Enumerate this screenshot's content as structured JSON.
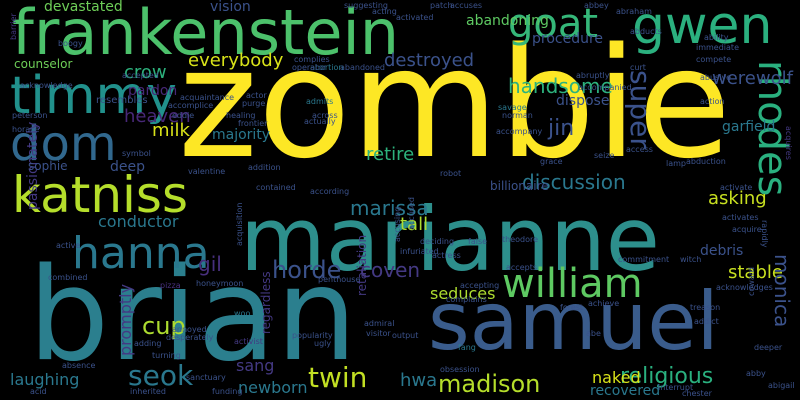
{
  "words": [
    {
      "text": "zombie",
      "color": "#fde725"
    },
    {
      "text": "marianne",
      "color": "#2d8f8c"
    },
    {
      "text": "brian",
      "color": "#2b7f8e"
    },
    {
      "text": "samuel",
      "color": "#3a5c8c"
    },
    {
      "text": "frankenstein",
      "color": "#4cc16b"
    },
    {
      "text": "gwen",
      "color": "#2bb07f"
    },
    {
      "text": "goat",
      "color": "#35b779"
    },
    {
      "text": "timmy",
      "color": "#21918c"
    },
    {
      "text": "dom",
      "color": "#31688e"
    },
    {
      "text": "katniss",
      "color": "#b5de2b"
    },
    {
      "text": "hanna",
      "color": "#2a788e"
    },
    {
      "text": "william",
      "color": "#5ec962"
    },
    {
      "text": "rhodes",
      "color": "#2ab07f"
    },
    {
      "text": "madison",
      "color": "#b5de2b"
    },
    {
      "text": "twin",
      "color": "#c2df23"
    },
    {
      "text": "horde",
      "color": "#3b528b"
    },
    {
      "text": "coven",
      "color": "#443983"
    },
    {
      "text": "seok",
      "color": "#2a788e"
    },
    {
      "text": "religious",
      "color": "#2ab07f"
    },
    {
      "text": "discussion",
      "color": "#2a788e"
    },
    {
      "text": "handsome",
      "color": "#2db27d"
    },
    {
      "text": "super",
      "color": "#3b528b"
    },
    {
      "text": "jin",
      "color": "#3b528b"
    },
    {
      "text": "marissa",
      "color": "#2a788e"
    },
    {
      "text": "retire",
      "color": "#2db27d"
    },
    {
      "text": "tall",
      "color": "#addc30"
    },
    {
      "text": "seduces",
      "color": "#addc30"
    },
    {
      "text": "cup",
      "color": "#addc30"
    },
    {
      "text": "gil",
      "color": "#472f7d"
    },
    {
      "text": "conductor",
      "color": "#2a788e"
    },
    {
      "text": "asking",
      "color": "#c8e020"
    },
    {
      "text": "stable",
      "color": "#c8e020"
    },
    {
      "text": "monica",
      "color": "#3b528b"
    },
    {
      "text": "werewolf",
      "color": "#3b528b"
    },
    {
      "text": "garfield",
      "color": "#2a788e"
    },
    {
      "text": "crow",
      "color": "#2db27d"
    },
    {
      "text": "heaven",
      "color": "#482878"
    },
    {
      "text": "milk",
      "color": "#d8e219"
    },
    {
      "text": "everybody",
      "color": "#d8e219"
    },
    {
      "text": "destroyed",
      "color": "#3b528b"
    },
    {
      "text": "procedure",
      "color": "#3b528b"
    },
    {
      "text": "devastated",
      "color": "#6ece58"
    },
    {
      "text": "vision",
      "color": "#3b528b"
    },
    {
      "text": "hwa",
      "color": "#2a788e"
    },
    {
      "text": "naked",
      "color": "#d8e219"
    },
    {
      "text": "recovered",
      "color": "#2a788e"
    },
    {
      "text": "newborn",
      "color": "#2a788e"
    },
    {
      "text": "laughing",
      "color": "#2a788e"
    },
    {
      "text": "sang",
      "color": "#443983"
    },
    {
      "text": "passionately",
      "color": "#443983"
    },
    {
      "text": "promptly",
      "color": "#443983"
    },
    {
      "text": "pardon",
      "color": "#482878"
    },
    {
      "text": "majority",
      "color": "#2a788e"
    },
    {
      "text": "sophie",
      "color": "#3b528b"
    },
    {
      "text": "deep",
      "color": "#3b528b"
    },
    {
      "text": "dispose",
      "color": "#3b528b"
    },
    {
      "text": "billionaire",
      "color": "#3b528b"
    },
    {
      "text": "debris",
      "color": "#3b528b"
    },
    {
      "text": "retaliation",
      "color": "#443983"
    },
    {
      "text": "regardless",
      "color": "#443983"
    },
    {
      "text": "abandoning",
      "color": "#5ec962"
    },
    {
      "text": "counselor",
      "color": "#6ece58"
    },
    {
      "text": "resembles",
      "color": "#3b528b"
    },
    {
      "text": "popularity",
      "color": "#3b528b"
    },
    {
      "text": "output",
      "color": "#3b528b"
    },
    {
      "text": "pizza",
      "color": "#472f7d"
    },
    {
      "text": "woo",
      "color": "#2a788e"
    },
    {
      "text": "turning",
      "color": "#3b528b"
    },
    {
      "text": "absence",
      "color": "#3b528b"
    },
    {
      "text": "activist",
      "color": "#443983"
    },
    {
      "text": "ugly",
      "color": "#3b528b"
    },
    {
      "text": "fang",
      "color": "#2a788e"
    },
    {
      "text": "acquisition",
      "color": "#3b528b"
    },
    {
      "text": "abruptly",
      "color": "#3b528b"
    },
    {
      "text": "acquires",
      "color": "#443983"
    },
    {
      "text": "barrier",
      "color": "#443983"
    },
    {
      "text": "peterson",
      "color": "#3b528b"
    },
    {
      "text": "horace",
      "color": "#3b528b"
    },
    {
      "text": "abortion",
      "color": "#2a788e"
    },
    {
      "text": "actor",
      "color": "#3b528b"
    },
    {
      "text": "purge",
      "color": "#3b528b"
    },
    {
      "text": "acquaintance",
      "color": "#3b528b"
    },
    {
      "text": "accomplice",
      "color": "#3b528b"
    },
    {
      "text": "eddie",
      "color": "#3b528b"
    },
    {
      "text": "healing",
      "color": "#3b528b"
    },
    {
      "text": "frontier",
      "color": "#3b528b"
    },
    {
      "text": "admits",
      "color": "#2a788e"
    },
    {
      "text": "across",
      "color": "#3b528b"
    },
    {
      "text": "actually",
      "color": "#3b528b"
    },
    {
      "text": "savage",
      "color": "#2a788e"
    },
    {
      "text": "norman",
      "color": "#3b528b"
    },
    {
      "text": "grace",
      "color": "#3b528b"
    },
    {
      "text": "seize",
      "color": "#3b528b"
    },
    {
      "text": "lamp",
      "color": "#3b528b"
    },
    {
      "text": "access",
      "color": "#3b528b"
    },
    {
      "text": "abduction",
      "color": "#3b528b"
    },
    {
      "text": "activate",
      "color": "#3b528b"
    },
    {
      "text": "symbol",
      "color": "#3b528b"
    },
    {
      "text": "valentine",
      "color": "#3b528b"
    },
    {
      "text": "addition",
      "color": "#3b528b"
    },
    {
      "text": "contained",
      "color": "#3b528b"
    },
    {
      "text": "according",
      "color": "#3b528b"
    },
    {
      "text": "accused",
      "color": "#3b528b"
    },
    {
      "text": "infuriated",
      "color": "#3b528b"
    },
    {
      "text": "deciding",
      "color": "#3b528b"
    },
    {
      "text": "actress",
      "color": "#3b528b"
    },
    {
      "text": "false",
      "color": "#3b528b"
    },
    {
      "text": "theodore",
      "color": "#3b528b"
    },
    {
      "text": "active",
      "color": "#3b528b"
    },
    {
      "text": "activates",
      "color": "#3b528b"
    },
    {
      "text": "commitment",
      "color": "#3b528b"
    },
    {
      "text": "witch",
      "color": "#3b528b"
    },
    {
      "text": "acquire",
      "color": "#3b528b"
    },
    {
      "text": "accepts",
      "color": "#3b528b"
    },
    {
      "text": "accepting",
      "color": "#3b528b"
    },
    {
      "text": "complains",
      "color": "#3b528b"
    },
    {
      "text": "achieve",
      "color": "#3b528b"
    },
    {
      "text": "treason",
      "color": "#3b528b"
    },
    {
      "text": "addict",
      "color": "#3b528b"
    },
    {
      "text": "deeper",
      "color": "#3b528b"
    },
    {
      "text": "admiral",
      "color": "#3b528b"
    },
    {
      "text": "visitor",
      "color": "#3b528b"
    },
    {
      "text": "annoyed",
      "color": "#3b528b"
    },
    {
      "text": "desperately",
      "color": "#3b528b"
    },
    {
      "text": "sanctuary",
      "color": "#3b528b"
    },
    {
      "text": "inherited",
      "color": "#3b528b"
    },
    {
      "text": "funding",
      "color": "#3b528b"
    },
    {
      "text": "obsession",
      "color": "#3b528b"
    },
    {
      "text": "interrupt",
      "color": "#3b528b"
    },
    {
      "text": "chester",
      "color": "#3b528b"
    },
    {
      "text": "abby",
      "color": "#3b528b"
    },
    {
      "text": "abigail",
      "color": "#3b528b"
    },
    {
      "text": "acid",
      "color": "#3b528b"
    },
    {
      "text": "suggesting",
      "color": "#3b528b"
    },
    {
      "text": "acting",
      "color": "#3b528b"
    },
    {
      "text": "activated",
      "color": "#3b528b"
    },
    {
      "text": "patch",
      "color": "#3b528b"
    },
    {
      "text": "accuses",
      "color": "#3b528b"
    },
    {
      "text": "abraham",
      "color": "#3b528b"
    },
    {
      "text": "ability",
      "color": "#3b528b"
    },
    {
      "text": "immediate",
      "color": "#3b528b"
    },
    {
      "text": "compete",
      "color": "#3b528b"
    },
    {
      "text": "abusive",
      "color": "#3b528b"
    },
    {
      "text": "action",
      "color": "#3b528b"
    },
    {
      "text": "rapidly",
      "color": "#3b528b"
    },
    {
      "text": "abbey",
      "color": "#3b528b"
    },
    {
      "text": "accompanied",
      "color": "#3b528b"
    },
    {
      "text": "curt",
      "color": "#3b528b"
    },
    {
      "text": "abducts",
      "color": "#3b528b"
    },
    {
      "text": "complies",
      "color": "#3b528b"
    },
    {
      "text": "operator",
      "color": "#3b528b"
    },
    {
      "text": "abandoned",
      "color": "#3b528b"
    },
    {
      "text": "accepted",
      "color": "#3b528b"
    },
    {
      "text": "boogy",
      "color": "#3b528b"
    },
    {
      "text": "accusing",
      "color": "#3b528b"
    },
    {
      "text": "robot",
      "color": "#3b528b"
    },
    {
      "text": "acknowledge",
      "color": "#3b528b"
    },
    {
      "text": "accompany",
      "color": "#3b528b"
    },
    {
      "text": "acknowledges",
      "color": "#3b528b"
    },
    {
      "text": "coward",
      "color": "#3b528b"
    },
    {
      "text": "abe",
      "color": "#3b528b"
    },
    {
      "text": "forest",
      "color": "#3b528b"
    },
    {
      "text": "penthouse",
      "color": "#3b528b"
    },
    {
      "text": "adding",
      "color": "#3b528b"
    },
    {
      "text": "combined",
      "color": "#3b528b"
    },
    {
      "text": "honeymoon",
      "color": "#3b528b"
    }
  ]
}
